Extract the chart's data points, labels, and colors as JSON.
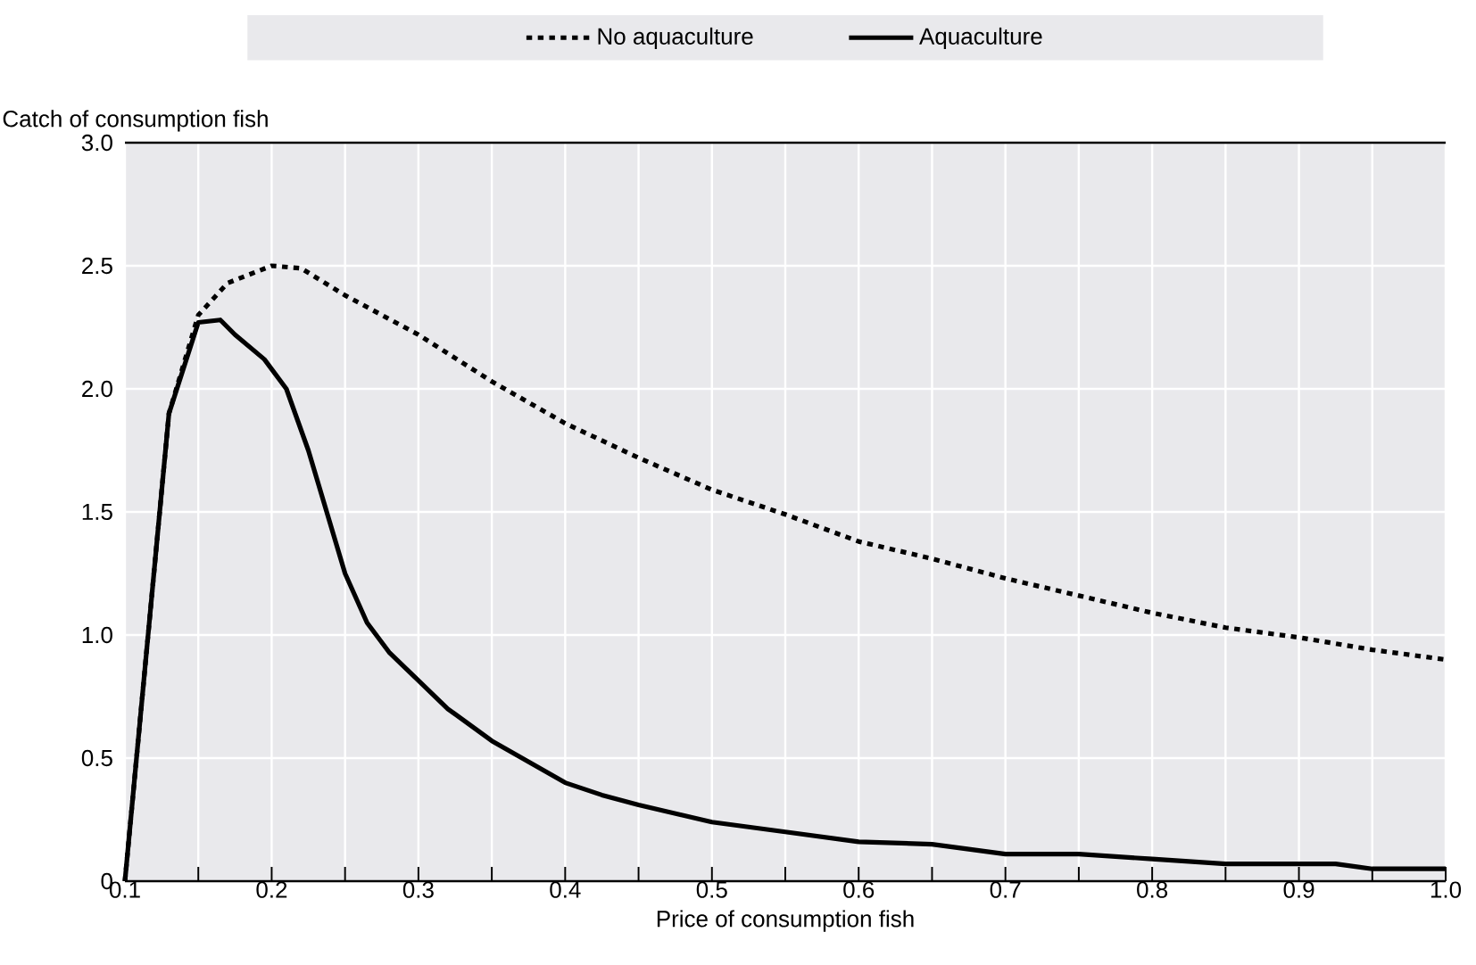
{
  "chart_data": {
    "type": "line",
    "xlabel": "Price of consumption fish",
    "ylabel": "Catch of consumption fish",
    "xlim": [
      0.1,
      1.0
    ],
    "ylim": [
      0,
      3.0
    ],
    "xticks": [
      0.1,
      {
        "value": 0.15,
        "label": null
      },
      0.2,
      {
        "value": 0.25,
        "label": null
      },
      0.3,
      {
        "value": 0.35,
        "label": null
      },
      0.4,
      {
        "value": 0.45,
        "label": null
      },
      0.5,
      {
        "value": 0.55,
        "label": null
      },
      0.6,
      {
        "value": 0.65,
        "label": null
      },
      0.7,
      {
        "value": 0.75,
        "label": null
      },
      0.8,
      {
        "value": 0.85,
        "label": null
      },
      0.9,
      {
        "value": 0.95,
        "label": null
      },
      "1.0"
    ],
    "yticks": [
      0,
      0.5,
      "1.0",
      1.5,
      "2.0",
      2.5,
      "3.0"
    ],
    "grid": true,
    "legend": "top",
    "marker": "none",
    "series": [
      {
        "name": "No aquaculture",
        "color": "#000000",
        "line_style": "dotted",
        "x": [
          0.1,
          0.13,
          0.15,
          0.17,
          0.2,
          0.22,
          0.25,
          0.3,
          0.35,
          0.4,
          0.45,
          0.5,
          0.55,
          0.6,
          0.65,
          0.7,
          0.75,
          0.8,
          0.85,
          0.9,
          0.95,
          1.0
        ],
        "values": [
          0,
          1.9,
          2.3,
          2.43,
          2.5,
          2.49,
          2.38,
          2.22,
          2.03,
          1.86,
          1.72,
          1.59,
          1.49,
          1.38,
          1.31,
          1.23,
          1.16,
          1.09,
          1.03,
          0.99,
          0.94,
          0.9
        ]
      },
      {
        "name": "Aquaculture",
        "color": "#000000",
        "line_style": "solid",
        "x": [
          0.1,
          0.13,
          0.15,
          0.165,
          0.175,
          0.195,
          0.21,
          0.225,
          0.25,
          0.265,
          0.28,
          0.32,
          0.35,
          0.4,
          0.425,
          0.45,
          0.5,
          0.55,
          0.6,
          0.65,
          0.7,
          0.75,
          0.8,
          0.85,
          0.925,
          0.95,
          1.0
        ],
        "values": [
          0,
          1.9,
          2.27,
          2.28,
          2.22,
          2.12,
          2.0,
          1.75,
          1.25,
          1.05,
          0.93,
          0.7,
          0.57,
          0.4,
          0.35,
          0.31,
          0.24,
          0.2,
          0.16,
          0.15,
          0.11,
          0.11,
          0.09,
          0.07,
          0.07,
          0.05,
          0.05
        ]
      }
    ]
  }
}
